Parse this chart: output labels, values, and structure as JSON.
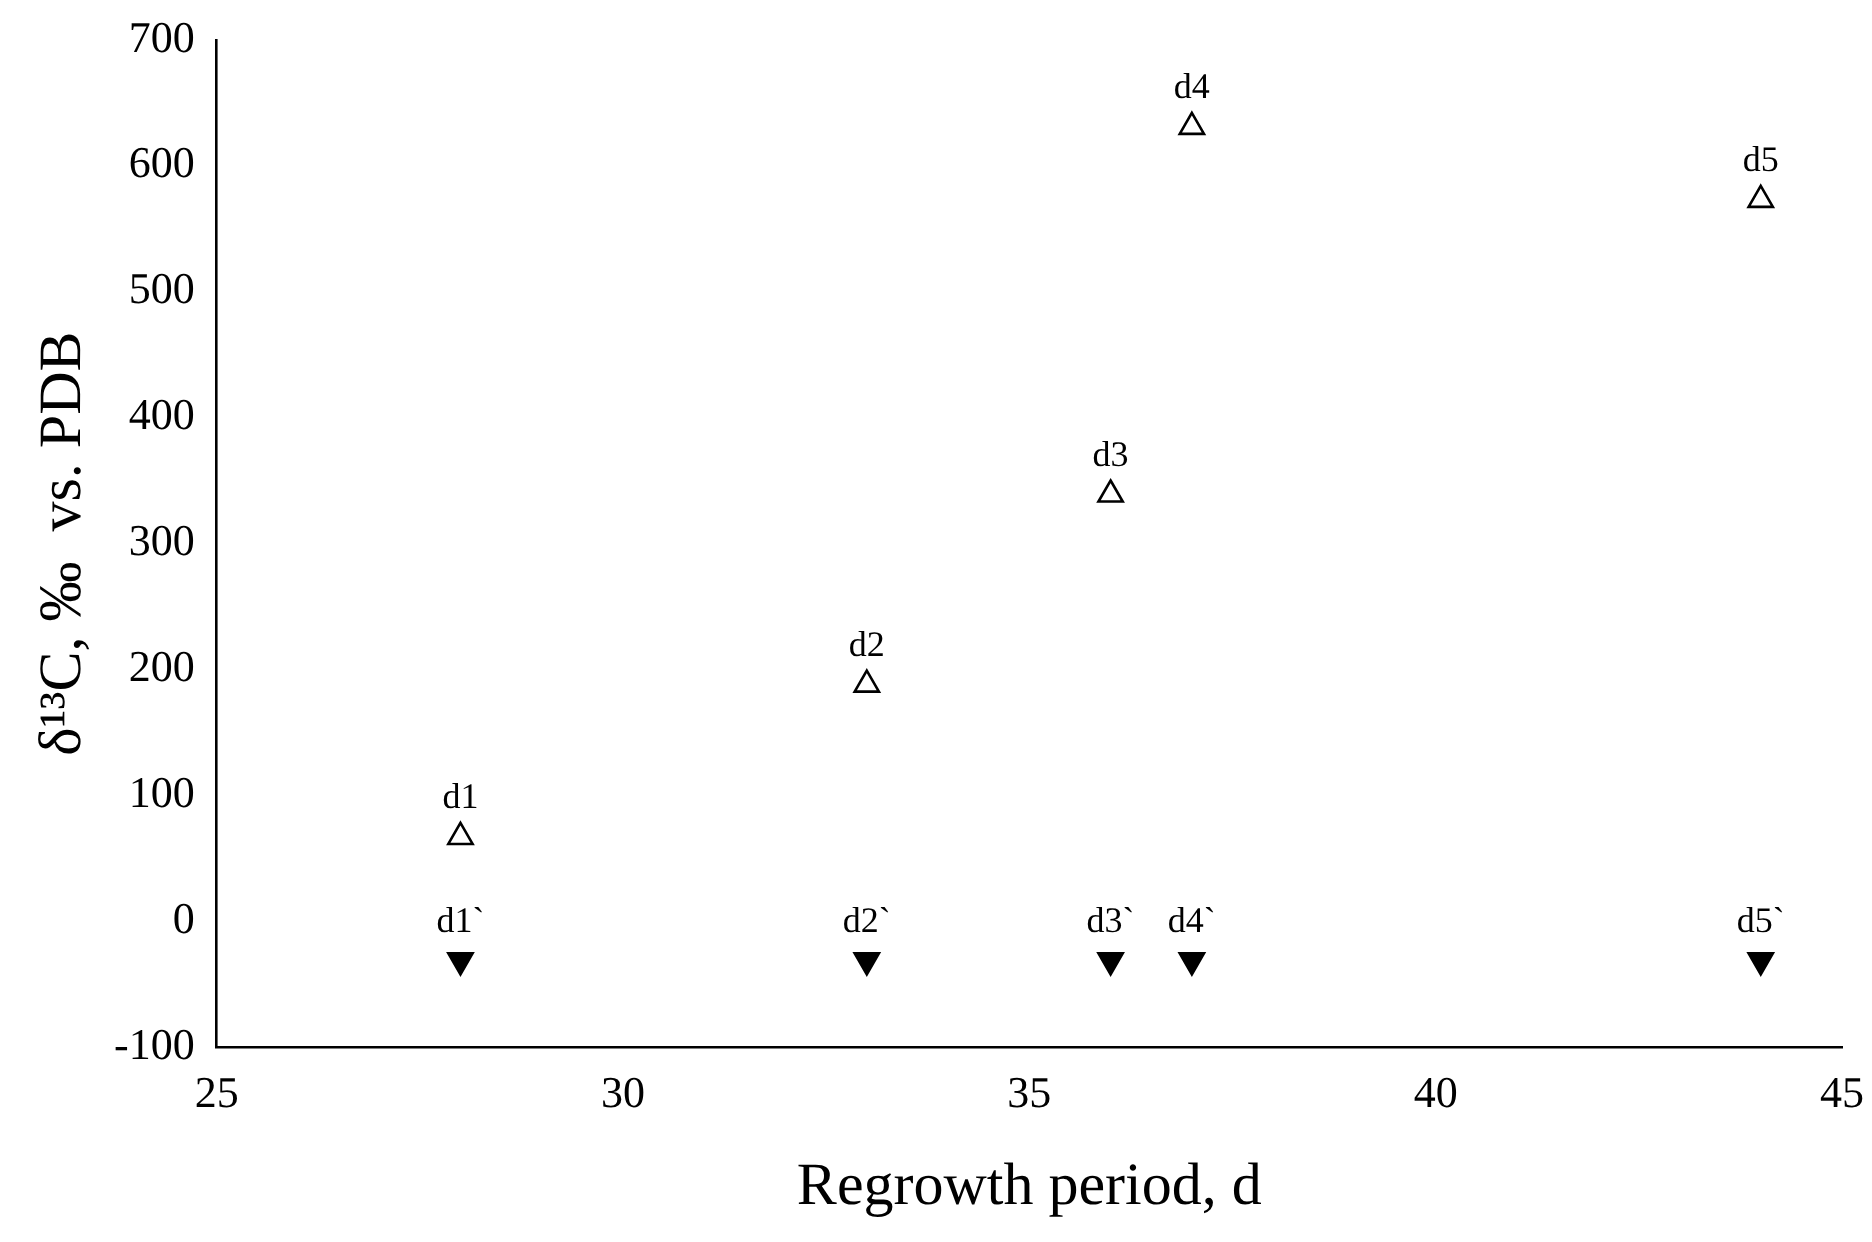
{
  "chart_data": {
    "type": "scatter",
    "xlabel": "Regrowth period, d",
    "ylabel": "δ¹³C, ‰  vs. PDB",
    "x": [
      28,
      33,
      36,
      37,
      44
    ],
    "series": [
      {
        "color": "#000000",
        "marker": "triangle",
        "values": [
          67,
          188,
          339,
          631,
          573
        ]
      },
      {
        "color": "#000000",
        "marker": "triangle-down",
        "values": [
          -31,
          -31,
          -31,
          -31,
          -31
        ]
      }
    ],
    "xlim": [
      25,
      45
    ],
    "xticks": [
      25,
      30,
      35,
      40,
      45
    ],
    "ylim": [
      -100,
      700
    ],
    "yticks": [
      -100,
      0,
      100,
      200,
      300,
      400,
      500,
      600,
      700
    ],
    "grid": false,
    "legend": false,
    "annotations": [
      {
        "text": "d1",
        "x": 28,
        "y": 67
      },
      {
        "text": "d2",
        "x": 33,
        "y": 188
      },
      {
        "text": "d3",
        "x": 36,
        "y": 339
      },
      {
        "text": "d4",
        "x": 37,
        "y": 631
      },
      {
        "text": "d5",
        "x": 44,
        "y": 573
      },
      {
        "text": "d1`",
        "x": 28,
        "y": -31
      },
      {
        "text": "d2`",
        "x": 33,
        "y": -31
      },
      {
        "text": "d3`",
        "x": 36,
        "y": -31
      },
      {
        "text": "d4`",
        "x": 37,
        "y": -31
      },
      {
        "text": "d5`",
        "x": 44,
        "y": -31
      }
    ]
  }
}
